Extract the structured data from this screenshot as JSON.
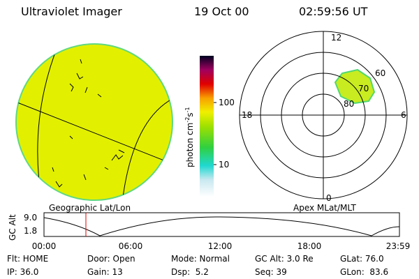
{
  "header": {
    "instrument": "Ultraviolet Imager",
    "date": "19 Oct 00",
    "time": "02:59:56 UT"
  },
  "left_panel": {
    "label": "Geographic Lat/Lon"
  },
  "colorbar": {
    "unit_base": "photon cm",
    "unit_exp1": "-2",
    "unit_mid": "s",
    "unit_exp2": "-1",
    "tick_100": "100",
    "tick_10": "10"
  },
  "polar": {
    "label": "Apex MLat/MLT",
    "mlt_12": "12",
    "mlt_18": "18",
    "mlt_6": "6",
    "mlt_0": "0",
    "lat_60": "60",
    "lat_70": "70",
    "lat_80": "80"
  },
  "timeline": {
    "axis_label": "GC Alt",
    "y_top": "9.0",
    "y_bottom": "1.8",
    "x_labels": [
      "00:00",
      "06:00",
      "12:00",
      "18:00",
      "23:59"
    ]
  },
  "footer": {
    "rows": [
      [
        "Flt: HOME",
        "Door: Open",
        "Mode: Normal",
        "GC Alt: 3.0 Re",
        "GLat: 76.0"
      ],
      [
        "IP: 36.0",
        "Gain: 13",
        "Dsp:  5.2",
        "Seq: 39",
        "GLon:  83.6"
      ]
    ]
  }
}
